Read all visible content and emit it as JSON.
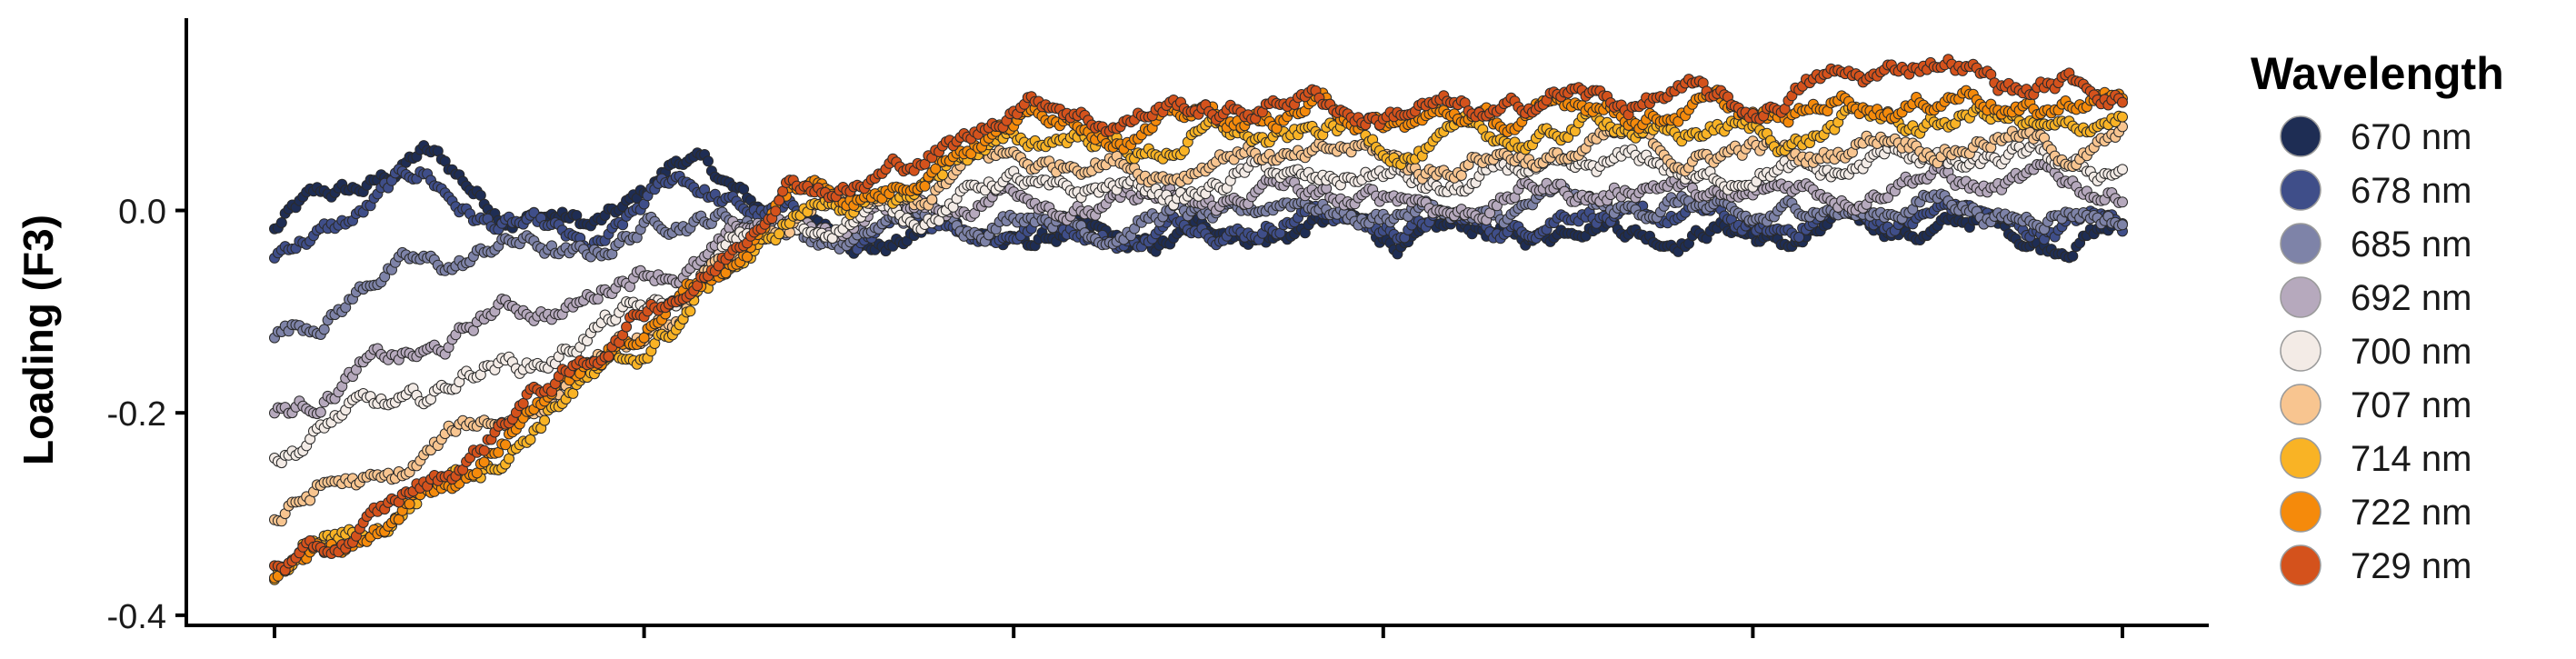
{
  "chart_data": {
    "type": "scatter",
    "ylabel": "Loading (F3)",
    "xlabel": "",
    "x_ticks_count": 6,
    "ylim": [
      -0.41,
      0.19
    ],
    "y_ticks": [
      {
        "value": -0.4,
        "label": "-0.4"
      },
      {
        "value": -0.2,
        "label": "-0.2"
      },
      {
        "value": 0.0,
        "label": "0.0"
      }
    ],
    "grid": false,
    "legend": {
      "title": "Wavelength",
      "placement": "right",
      "entries": [
        "670 nm",
        "678 nm",
        "685 nm",
        "692 nm",
        "700 nm",
        "707 nm",
        "714 nm",
        "722 nm",
        "729 nm"
      ]
    },
    "series": [
      {
        "name": "670 nm",
        "color": "#1e2d54",
        "keypoints": [
          [
            0,
            -0.02
          ],
          [
            0.08,
            0.05
          ],
          [
            0.14,
            0.0
          ],
          [
            0.17,
            -0.02
          ],
          [
            0.22,
            0.04
          ],
          [
            0.25,
            0.02
          ],
          [
            0.3,
            -0.02
          ],
          [
            0.4,
            -0.03
          ],
          [
            0.6,
            -0.02
          ],
          [
            0.8,
            -0.02
          ],
          [
            1,
            -0.02
          ]
        ]
      },
      {
        "name": "678 nm",
        "color": "#3f4e89",
        "keypoints": [
          [
            0,
            -0.05
          ],
          [
            0.08,
            0.03
          ],
          [
            0.14,
            -0.02
          ],
          [
            0.17,
            -0.04
          ],
          [
            0.22,
            0.02
          ],
          [
            0.25,
            0.01
          ],
          [
            0.3,
            -0.02
          ],
          [
            0.4,
            -0.02
          ],
          [
            0.6,
            -0.01
          ],
          [
            0.8,
            -0.01
          ],
          [
            1,
            -0.01
          ]
        ]
      },
      {
        "name": "685 nm",
        "color": "#7e83a8",
        "keypoints": [
          [
            0,
            -0.13
          ],
          [
            0.06,
            -0.07
          ],
          [
            0.12,
            -0.03
          ],
          [
            0.16,
            -0.04
          ],
          [
            0.2,
            -0.03
          ],
          [
            0.24,
            0.0
          ],
          [
            0.27,
            -0.02
          ],
          [
            0.3,
            -0.02
          ],
          [
            0.4,
            -0.01
          ],
          [
            0.6,
            0.0
          ],
          [
            0.8,
            0.0
          ],
          [
            1,
            0.0
          ]
        ]
      },
      {
        "name": "692 nm",
        "color": "#b6a9bd",
        "keypoints": [
          [
            0,
            -0.2
          ],
          [
            0.06,
            -0.16
          ],
          [
            0.12,
            -0.1
          ],
          [
            0.18,
            -0.08
          ],
          [
            0.22,
            -0.06
          ],
          [
            0.25,
            -0.03
          ],
          [
            0.28,
            -0.01
          ],
          [
            0.35,
            0.0
          ],
          [
            0.4,
            0.01
          ],
          [
            0.6,
            0.01
          ],
          [
            0.8,
            0.02
          ],
          [
            1,
            0.03
          ]
        ]
      },
      {
        "name": "700 nm",
        "color": "#f3ebe6",
        "keypoints": [
          [
            0,
            -0.24
          ],
          [
            0.06,
            -0.2
          ],
          [
            0.12,
            -0.15
          ],
          [
            0.18,
            -0.12
          ],
          [
            0.22,
            -0.09
          ],
          [
            0.25,
            -0.04
          ],
          [
            0.28,
            -0.01
          ],
          [
            0.35,
            0.0
          ],
          [
            0.4,
            0.02
          ],
          [
            0.6,
            0.03
          ],
          [
            0.8,
            0.04
          ],
          [
            1,
            0.05
          ]
        ]
      },
      {
        "name": "707 nm",
        "color": "#f8c590",
        "keypoints": [
          [
            0,
            -0.3
          ],
          [
            0.06,
            -0.27
          ],
          [
            0.12,
            -0.2
          ],
          [
            0.18,
            -0.15
          ],
          [
            0.22,
            -0.11
          ],
          [
            0.25,
            -0.05
          ],
          [
            0.28,
            0.0
          ],
          [
            0.35,
            0.01
          ],
          [
            0.4,
            0.05
          ],
          [
            0.6,
            0.05
          ],
          [
            0.8,
            0.06
          ],
          [
            1,
            0.07
          ]
        ]
      },
      {
        "name": "714 nm",
        "color": "#f9b325",
        "keypoints": [
          [
            0,
            -0.36
          ],
          [
            0.06,
            -0.31
          ],
          [
            0.12,
            -0.23
          ],
          [
            0.18,
            -0.16
          ],
          [
            0.2,
            -0.14
          ],
          [
            0.22,
            -0.12
          ],
          [
            0.25,
            -0.05
          ],
          [
            0.28,
            0.0
          ],
          [
            0.35,
            0.02
          ],
          [
            0.4,
            0.07
          ],
          [
            0.6,
            0.07
          ],
          [
            0.8,
            0.08
          ],
          [
            1,
            0.09
          ]
        ]
      },
      {
        "name": "722 nm",
        "color": "#f58a0b",
        "keypoints": [
          [
            0,
            -0.37
          ],
          [
            0.06,
            -0.32
          ],
          [
            0.12,
            -0.22
          ],
          [
            0.18,
            -0.14
          ],
          [
            0.2,
            -0.12
          ],
          [
            0.22,
            -0.1
          ],
          [
            0.25,
            -0.04
          ],
          [
            0.28,
            0.02
          ],
          [
            0.35,
            0.03
          ],
          [
            0.4,
            0.09
          ],
          [
            0.6,
            0.09
          ],
          [
            0.8,
            0.1
          ],
          [
            1,
            0.11
          ]
        ]
      },
      {
        "name": "729 nm",
        "color": "#d4521c",
        "keypoints": [
          [
            0,
            -0.36
          ],
          [
            0.06,
            -0.31
          ],
          [
            0.12,
            -0.21
          ],
          [
            0.18,
            -0.13
          ],
          [
            0.2,
            -0.11
          ],
          [
            0.22,
            -0.09
          ],
          [
            0.25,
            -0.03
          ],
          [
            0.28,
            0.03
          ],
          [
            0.35,
            0.04
          ],
          [
            0.4,
            0.1
          ],
          [
            0.6,
            0.1
          ],
          [
            0.8,
            0.11
          ],
          [
            0.88,
            0.14
          ],
          [
            1,
            0.12
          ]
        ]
      }
    ]
  }
}
